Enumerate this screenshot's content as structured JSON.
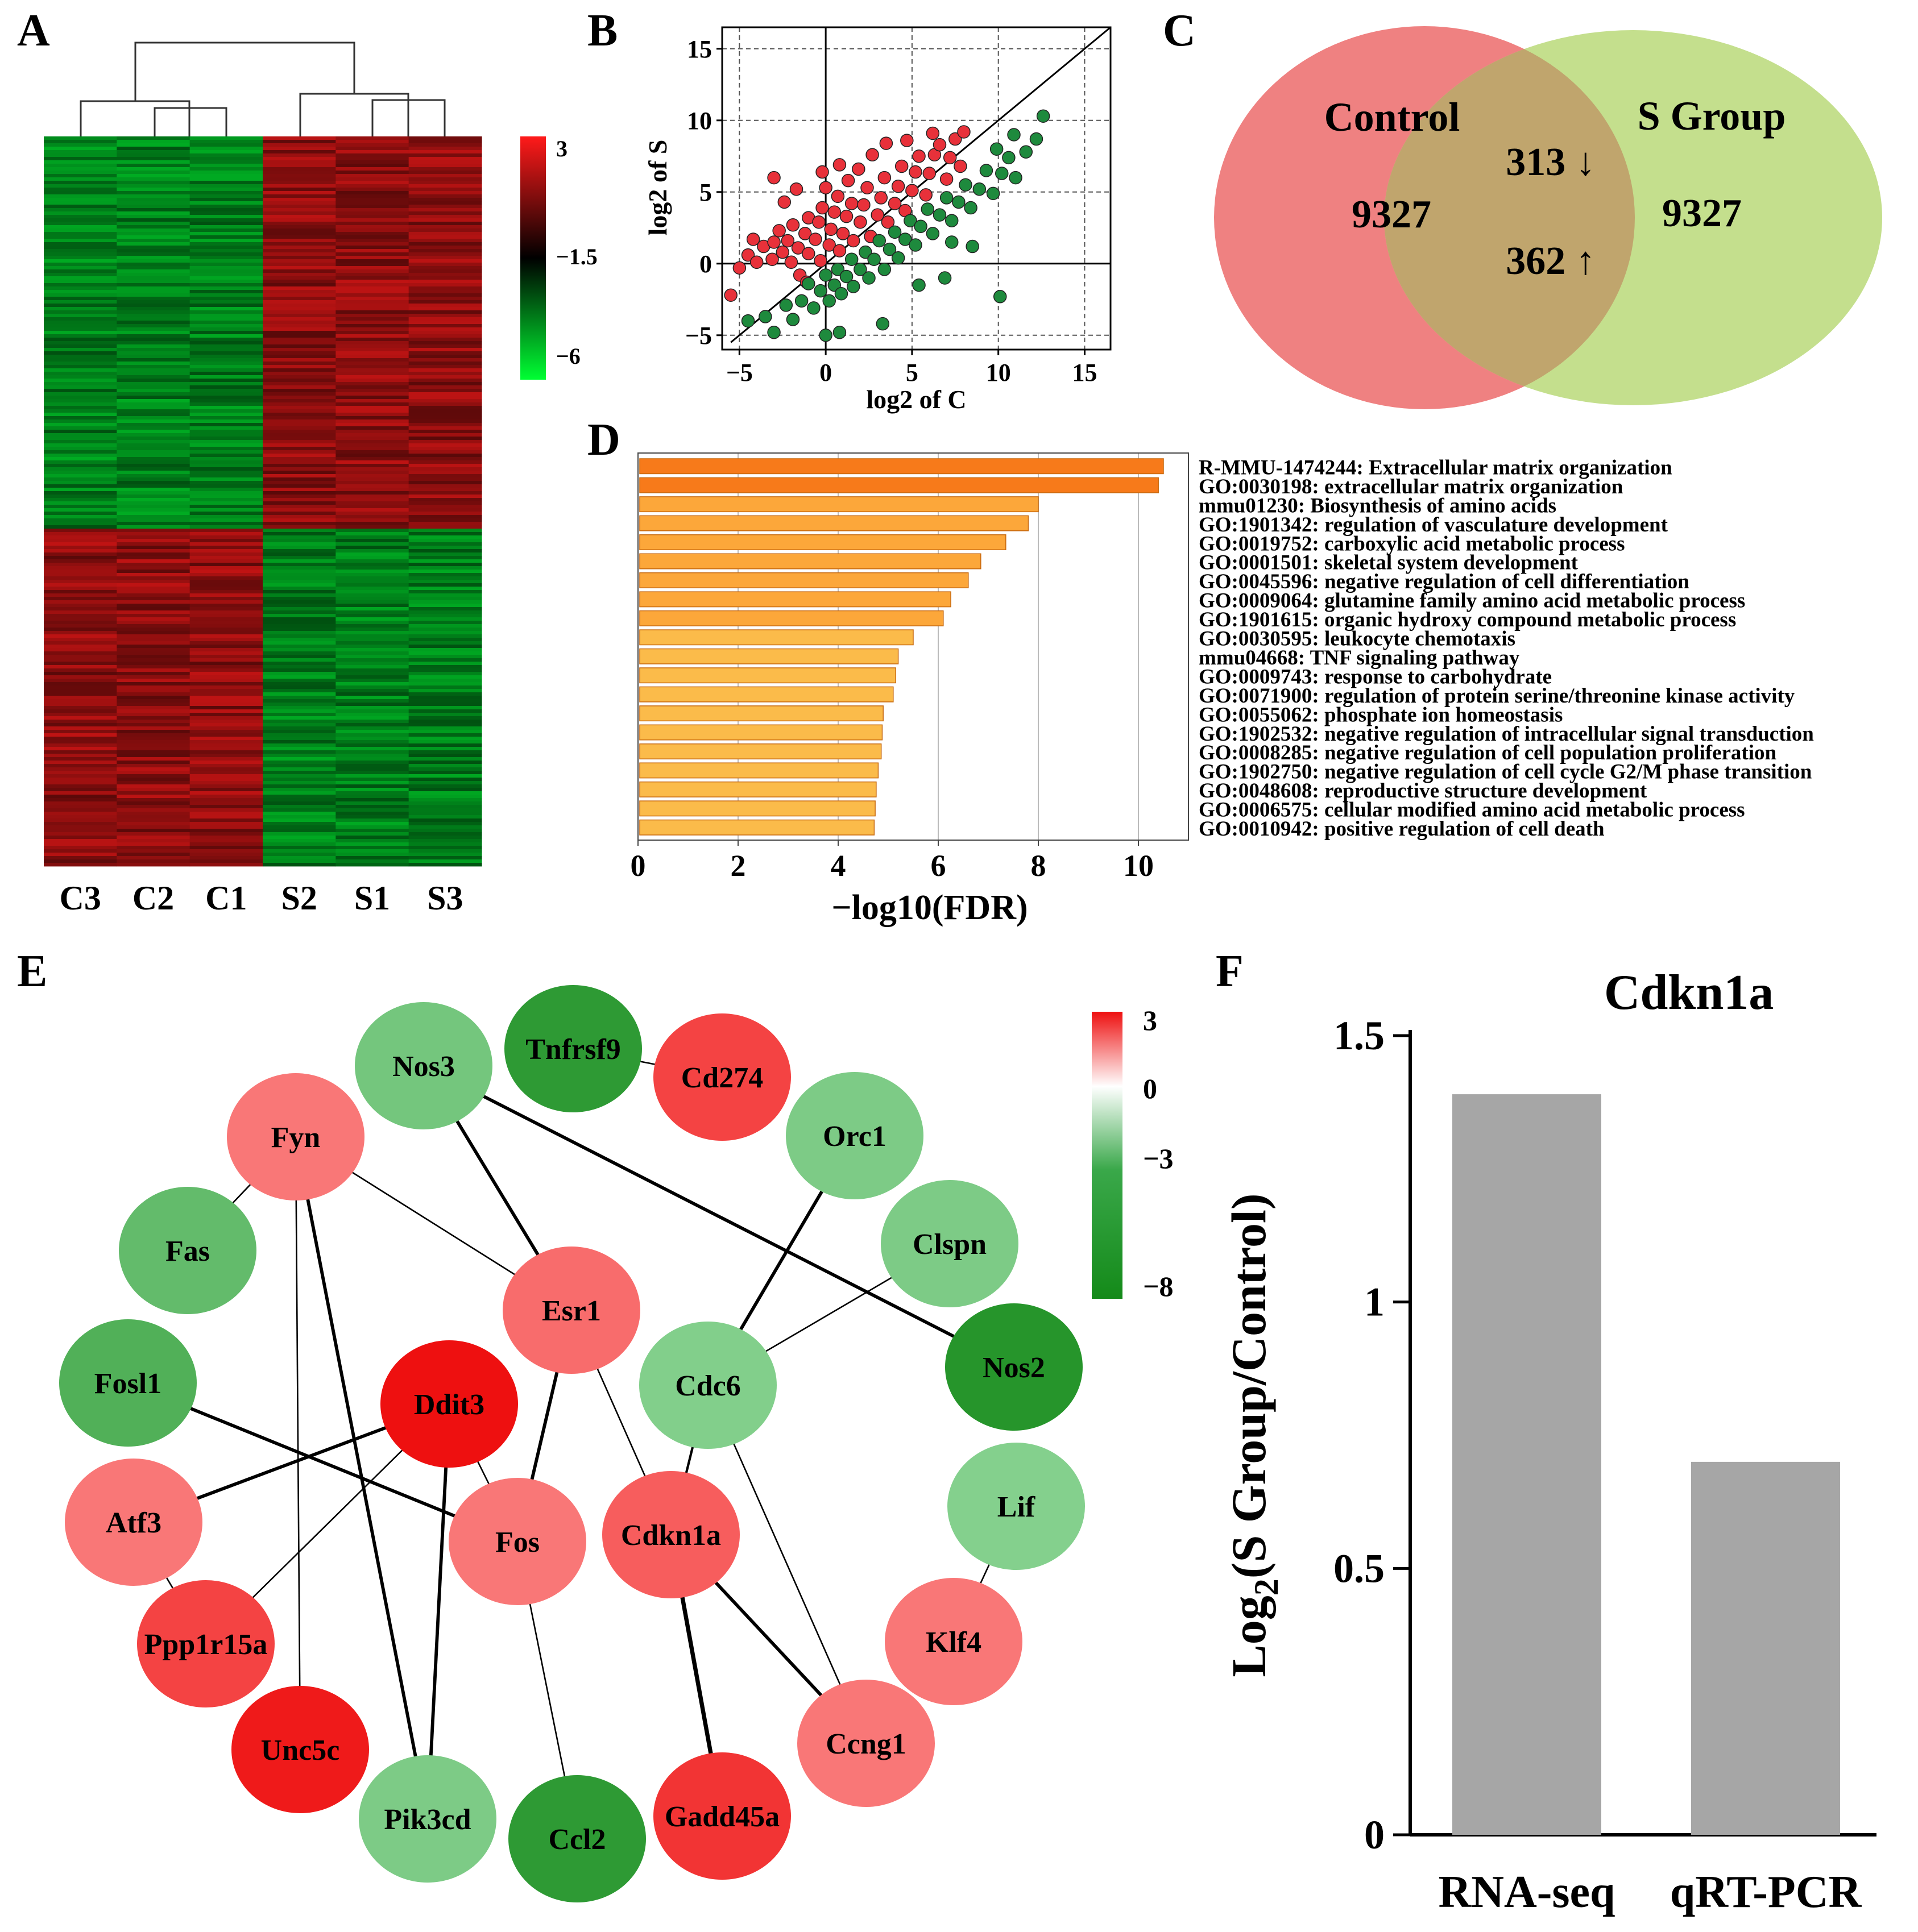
{
  "panel_letters": [
    "A",
    "B",
    "C",
    "D",
    "E",
    "F"
  ],
  "chart_data": [
    {
      "panel": "A",
      "type": "heatmap",
      "columns": [
        "C3",
        "C2",
        "C1",
        "S2",
        "S1",
        "S3"
      ],
      "colorbar_ticks": [
        "3",
        "−1.5",
        "−6"
      ],
      "colorbar_range": [
        -6,
        3
      ],
      "colors": {
        "high": "#ff1a1a",
        "mid": "#000000",
        "low": "#00ff33"
      }
    },
    {
      "panel": "B",
      "type": "scatter",
      "xlabel": "log2 of C",
      "ylabel": "log2 of S",
      "xlim": [
        -6,
        16.5
      ],
      "ylim": [
        -6,
        16.5
      ],
      "xticks": [
        -5,
        0,
        5,
        10,
        15
      ],
      "yticks": [
        -5,
        0,
        5,
        10,
        15
      ],
      "xtick_labels": [
        "−5",
        "0",
        "5",
        "10",
        "15"
      ],
      "ytick_labels": [
        "−5",
        "0",
        "5",
        "10",
        "15"
      ],
      "series": [
        {
          "name": "up in S",
          "color": "#e8313a",
          "points": [
            [
              -5.5,
              -2.2
            ],
            [
              -5,
              -0.3
            ],
            [
              -4.5,
              0.6
            ],
            [
              -4,
              0.1
            ],
            [
              -3.6,
              1.2
            ],
            [
              -3.1,
              0.3
            ],
            [
              -3,
              1.5
            ],
            [
              -2.7,
              2.3
            ],
            [
              -2.5,
              0.8
            ],
            [
              -2.2,
              1.6
            ],
            [
              -2,
              0.1
            ],
            [
              -1.9,
              2.7
            ],
            [
              -1.6,
              1.1
            ],
            [
              -1.5,
              -0.8
            ],
            [
              -1.2,
              2.1
            ],
            [
              -1,
              3.2
            ],
            [
              -1,
              0.7
            ],
            [
              -0.6,
              1.7
            ],
            [
              -0.4,
              2.9
            ],
            [
              -0.2,
              3.9
            ],
            [
              -0.3,
              0.2
            ],
            [
              0.2,
              1.3
            ],
            [
              0.3,
              2.4
            ],
            [
              0.5,
              3.6
            ],
            [
              0.7,
              4.7
            ],
            [
              0.8,
              0.9
            ],
            [
              1,
              2.1
            ],
            [
              1.2,
              3.3
            ],
            [
              1.5,
              4.2
            ],
            [
              1.6,
              1.6
            ],
            [
              2,
              2.9
            ],
            [
              2.2,
              4.1
            ],
            [
              2.4,
              5.3
            ],
            [
              2.6,
              1.9
            ],
            [
              3,
              3.4
            ],
            [
              3.2,
              4.6
            ],
            [
              3.4,
              6
            ],
            [
              3.6,
              2.9
            ],
            [
              4,
              4.2
            ],
            [
              4.2,
              5.4
            ],
            [
              4.4,
              6.8
            ],
            [
              4.6,
              3.7
            ],
            [
              5,
              5.1
            ],
            [
              5.2,
              6.4
            ],
            [
              5.4,
              7.5
            ],
            [
              5.8,
              4.8
            ],
            [
              6,
              6.3
            ],
            [
              6.3,
              7.6
            ],
            [
              6.6,
              8.3
            ],
            [
              7,
              5.9
            ],
            [
              7.2,
              7.4
            ],
            [
              7.5,
              8.7
            ],
            [
              8,
              9.2
            ],
            [
              7.8,
              6.8
            ],
            [
              -0.2,
              6.4
            ],
            [
              0.8,
              6.9
            ],
            [
              -3,
              6
            ],
            [
              -2.4,
              4.3
            ],
            [
              -1.7,
              5.2
            ],
            [
              1.9,
              6.6
            ],
            [
              2.7,
              7.6
            ],
            [
              3.5,
              8.4
            ],
            [
              4.7,
              8.6
            ],
            [
              6.2,
              9.1
            ],
            [
              -4.2,
              1.7
            ],
            [
              -1.1,
              -1.3
            ],
            [
              0,
              5.3
            ],
            [
              1.3,
              5.8
            ]
          ]
        },
        {
          "name": "down in S",
          "color": "#1e8a3d",
          "points": [
            [
              -4.5,
              -4
            ],
            [
              -3.5,
              -3.7
            ],
            [
              -3,
              -4.8
            ],
            [
              -2.3,
              -2.9
            ],
            [
              -1.9,
              -3.9
            ],
            [
              -1.4,
              -2.6
            ],
            [
              -1,
              -1.4
            ],
            [
              -0.7,
              -3.1
            ],
            [
              -0.3,
              -1.9
            ],
            [
              0,
              -0.8
            ],
            [
              0.2,
              -2.6
            ],
            [
              0.5,
              -1.5
            ],
            [
              0.7,
              -0.4
            ],
            [
              0.9,
              -2.1
            ],
            [
              1.2,
              -0.9
            ],
            [
              1.5,
              0.3
            ],
            [
              1.6,
              -1.6
            ],
            [
              2,
              -0.4
            ],
            [
              2.3,
              0.8
            ],
            [
              2.5,
              -1
            ],
            [
              2.8,
              0.3
            ],
            [
              3.1,
              1.6
            ],
            [
              3.4,
              -0.4
            ],
            [
              3.7,
              1
            ],
            [
              4,
              2.2
            ],
            [
              4.2,
              0.4
            ],
            [
              4.6,
              1.7
            ],
            [
              4.9,
              3
            ],
            [
              5.2,
              1.3
            ],
            [
              5.5,
              2.6
            ],
            [
              5.9,
              3.8
            ],
            [
              6.2,
              2.1
            ],
            [
              6.6,
              3.4
            ],
            [
              7,
              4.6
            ],
            [
              7.3,
              3
            ],
            [
              7.7,
              4.3
            ],
            [
              8.1,
              5.5
            ],
            [
              8.4,
              3.9
            ],
            [
              8.9,
              5.2
            ],
            [
              9.3,
              6.5
            ],
            [
              9.7,
              4.9
            ],
            [
              10.2,
              6.3
            ],
            [
              10.6,
              7.4
            ],
            [
              11,
              6
            ],
            [
              11.6,
              7.8
            ],
            [
              12.2,
              8.7
            ],
            [
              12.6,
              10.3
            ],
            [
              10.9,
              9
            ],
            [
              9.9,
              8
            ],
            [
              3.3,
              -4.2
            ],
            [
              5.4,
              -1.5
            ],
            [
              6.9,
              -1
            ],
            [
              8.5,
              1.2
            ],
            [
              10.1,
              -2.3
            ],
            [
              0.8,
              -4.8
            ],
            [
              0,
              -5
            ],
            [
              7.3,
              1.5
            ]
          ]
        }
      ],
      "diagonal": true
    },
    {
      "panel": "C",
      "type": "venn",
      "sets": [
        {
          "name": "Control",
          "count_label": "9327",
          "color": "#ef8181"
        },
        {
          "name": "S Group",
          "count_label": "9327",
          "color": "#c4df8d"
        }
      ],
      "overlap": {
        "color": "#c0a56d",
        "down_label": "313 ↓",
        "up_label": "362 ↑"
      }
    },
    {
      "panel": "D",
      "type": "bar",
      "orientation": "horizontal",
      "xlabel": "−log10(FDR)",
      "xlim": [
        0,
        11
      ],
      "xticks": [
        0,
        2,
        4,
        6,
        8,
        10
      ],
      "categories": [
        "R-MMU-1474244: Extracellular matrix organization",
        "GO:0030198: extracellular matrix organization",
        "mmu01230: Biosynthesis of amino acids",
        "GO:1901342: regulation of vasculature development",
        "GO:0019752: carboxylic acid metabolic process",
        "GO:0001501: skeletal system development",
        "GO:0045596: negative regulation of cell differentiation",
        "GO:0009064: glutamine family amino acid metabolic process",
        "GO:1901615: organic hydroxy compound metabolic process",
        "GO:0030595: leukocyte chemotaxis",
        "mmu04668: TNF signaling pathway",
        "GO:0009743: response to carbohydrate",
        "GO:0071900: regulation of protein serine/threonine kinase activity",
        "GO:0055062: phosphate ion homeostasis",
        "GO:1902532: negative regulation of intracellular signal transduction",
        "GO:0008285: negative regulation of cell population proliferation",
        "GO:1902750: negative regulation of cell cycle G2/M phase transition",
        "GO:0048608: reproductive structure development",
        "GO:0006575: cellular modified amino acid metabolic process",
        "GO:0010942: positive regulation of cell death"
      ],
      "values": [
        10.5,
        10.4,
        8.0,
        7.8,
        7.35,
        6.85,
        6.6,
        6.25,
        6.1,
        5.5,
        5.2,
        5.15,
        5.1,
        4.9,
        4.88,
        4.86,
        4.8,
        4.76,
        4.74,
        4.72
      ],
      "bar_colors": [
        "#f77a1a",
        "#f77a1a",
        "#fca73a",
        "#fca73a",
        "#fca73a",
        "#fca73a",
        "#fca73a",
        "#fca73a",
        "#fca73a",
        "#fbbb4a",
        "#fbbb4a",
        "#fbbb4a",
        "#fbbb4a",
        "#fbbb4a",
        "#fbbb4a",
        "#fbbb4a",
        "#fbbb4a",
        "#fbbb4a",
        "#fbbb4a",
        "#fbbb4a"
      ]
    },
    {
      "panel": "E",
      "type": "network",
      "colorbar_ticks": [
        "3",
        "0",
        "−3",
        "−8"
      ],
      "colorbar_range": [
        -8,
        3
      ],
      "nodes": [
        {
          "id": "Nos3",
          "value": -2.5
        },
        {
          "id": "Tnfrsf9",
          "value": -6.5
        },
        {
          "id": "Cd274",
          "value": 2.0
        },
        {
          "id": "Fyn",
          "value": 1.0
        },
        {
          "id": "Orc1",
          "value": -2.0
        },
        {
          "id": "Fas",
          "value": -3.5
        },
        {
          "id": "Clspn",
          "value": -2.0
        },
        {
          "id": "Esr1",
          "value": 1.2
        },
        {
          "id": "Fosl1",
          "value": -4.5
        },
        {
          "id": "Ddit3",
          "value": 3.0
        },
        {
          "id": "Cdc6",
          "value": -1.7
        },
        {
          "id": "Nos2",
          "value": -7.0
        },
        {
          "id": "Atf3",
          "value": 1.0
        },
        {
          "id": "Fos",
          "value": 1.0
        },
        {
          "id": "Cdkn1a",
          "value": 1.5
        },
        {
          "id": "Lif",
          "value": -1.6
        },
        {
          "id": "Ppp1r15a",
          "value": 2.0
        },
        {
          "id": "Klf4",
          "value": 1.0
        },
        {
          "id": "Unc5c",
          "value": 2.8
        },
        {
          "id": "Ccng1",
          "value": 1.0
        },
        {
          "id": "Pik3cd",
          "value": -2.0
        },
        {
          "id": "Ccl2",
          "value": -6.5
        },
        {
          "id": "Gadd45a",
          "value": 2.3
        }
      ],
      "edges": [
        [
          "Tnfrsf9",
          "Cd274",
          1
        ],
        [
          "Fyn",
          "Fas",
          1
        ],
        [
          "Nos3",
          "Esr1",
          3
        ],
        [
          "Nos3",
          "Nos2",
          3
        ],
        [
          "Fyn",
          "Esr1",
          1
        ],
        [
          "Fyn",
          "Unc5c",
          1
        ],
        [
          "Fyn",
          "Pik3cd",
          3
        ],
        [
          "Orc1",
          "Cdc6",
          3
        ],
        [
          "Clspn",
          "Cdc6",
          1
        ],
        [
          "Esr1",
          "Fos",
          3
        ],
        [
          "Esr1",
          "Cdkn1a",
          1
        ],
        [
          "Fosl1",
          "Fos",
          3
        ],
        [
          "Ddit3",
          "Atf3",
          3
        ],
        [
          "Ddit3",
          "Ppp1r15a",
          1
        ],
        [
          "Ddit3",
          "Fos",
          1
        ],
        [
          "Ddit3",
          "Pik3cd",
          3
        ],
        [
          "Cdc6",
          "Cdkn1a",
          2
        ],
        [
          "Cdc6",
          "Ccng1",
          1
        ],
        [
          "Atf3",
          "Ppp1r15a",
          1
        ],
        [
          "Fos",
          "Ccl2",
          1
        ],
        [
          "Cdkn1a",
          "Ccng1",
          3
        ],
        [
          "Cdkn1a",
          "Gadd45a",
          4
        ],
        [
          "Lif",
          "Klf4",
          1
        ]
      ]
    },
    {
      "panel": "F",
      "type": "bar",
      "title": "Cdkn1a",
      "ylabel_main": "Log",
      "ylabel_sub": "2",
      "ylabel_rest": "(S Group/Control)",
      "categories": [
        "RNA-seq",
        "qRT-PCR"
      ],
      "values": [
        1.39,
        0.7
      ],
      "ylim": [
        0,
        1.5
      ],
      "yticks": [
        0,
        0.5,
        1,
        1.5
      ],
      "ytick_labels": [
        "0",
        "0.5",
        "1",
        "1.5"
      ],
      "bar_color": "#a6a6a6"
    }
  ]
}
